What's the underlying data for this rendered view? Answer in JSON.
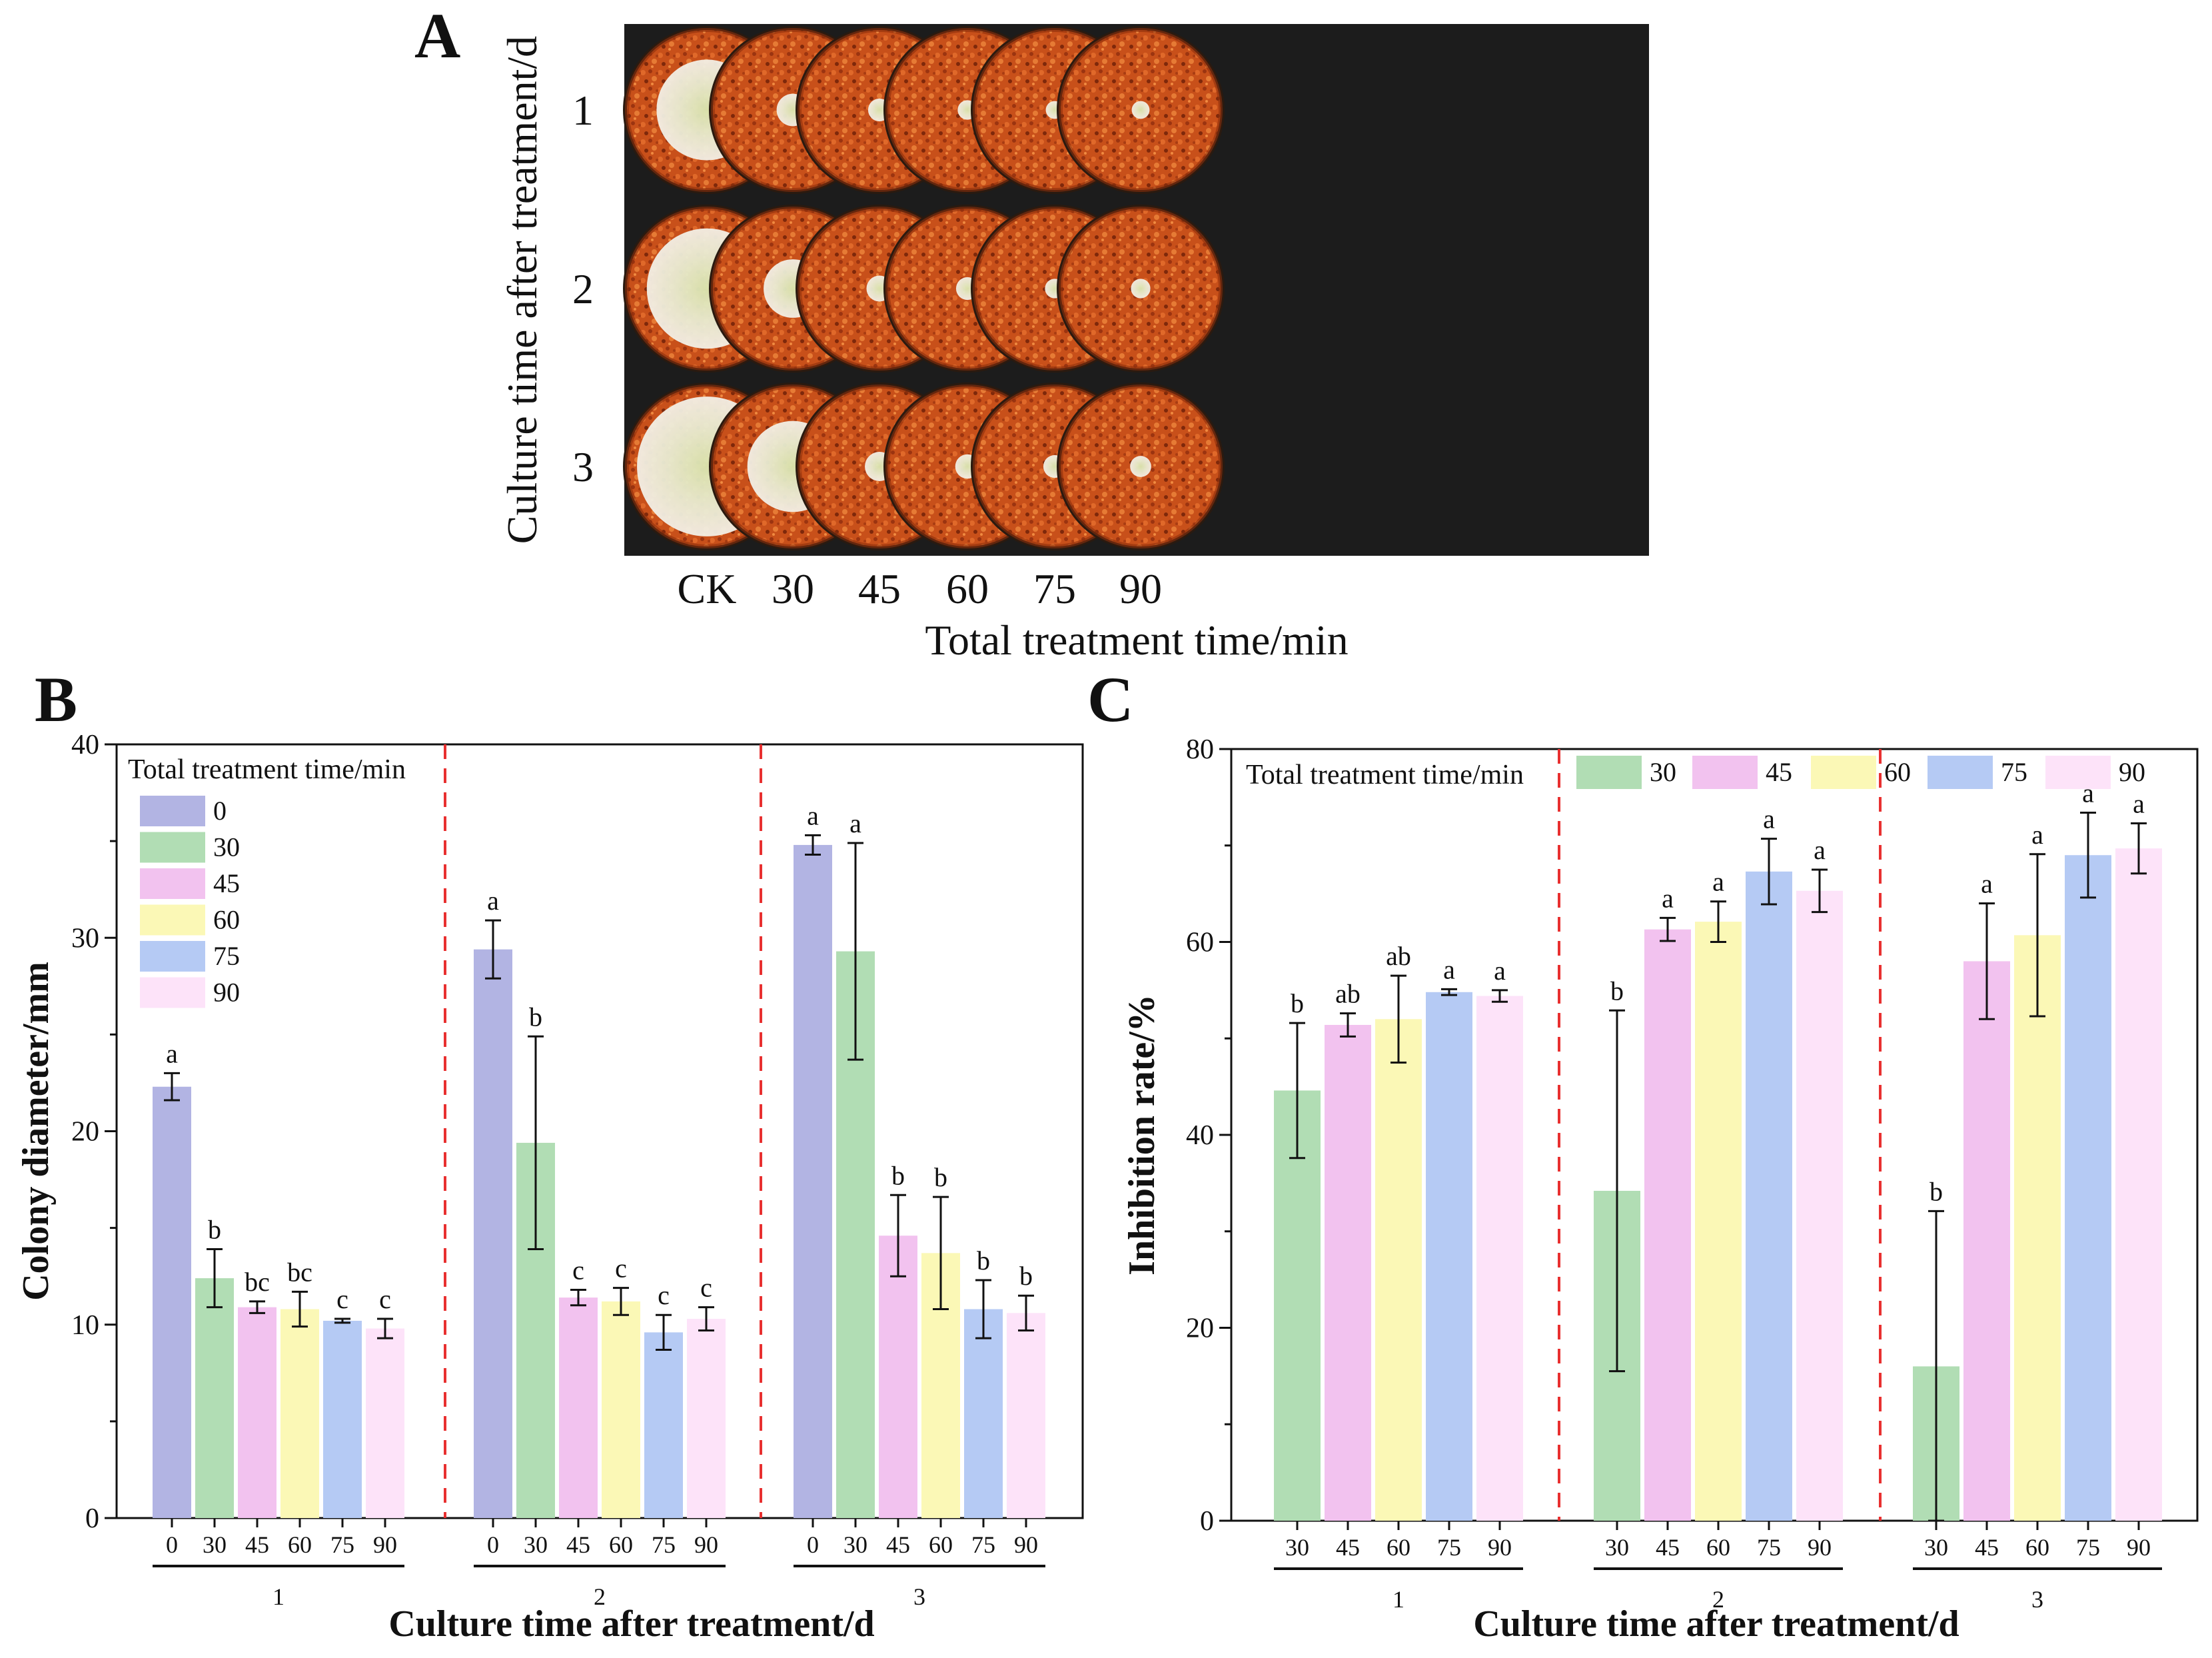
{
  "panel_labels": {
    "a": "A",
    "b": "B",
    "c": "C"
  },
  "colors": {
    "0": "#b2b4e3",
    "30": "#b1ddb4",
    "45": "#f2c2ef",
    "60": "#fbf8b6",
    "75": "#b5caf4",
    "90": "#fde3f9",
    "dish_rim": "#2a1a10",
    "dish_fill": "#c8501a",
    "dish_dark": "#8c2e0c",
    "photo_bg": "#1c1c1c",
    "divider": "#e83030"
  },
  "icons": {
    "dish": "petri-dish-icon"
  },
  "panel_a": {
    "y_title": "Culture time after treatment/d",
    "row_labels": [
      "1",
      "2",
      "3"
    ],
    "col_labels": [
      "CK",
      "30",
      "45",
      "60",
      "75",
      "90"
    ],
    "x_title": "Total treatment time/min",
    "colony_relative_size": [
      [
        0.62,
        0.2,
        0.14,
        0.12,
        0.11,
        0.11
      ],
      [
        0.74,
        0.36,
        0.16,
        0.14,
        0.12,
        0.12
      ],
      [
        0.86,
        0.56,
        0.18,
        0.15,
        0.14,
        0.13
      ]
    ]
  },
  "chart_data": [
    {
      "type": "bar",
      "panel": "B",
      "ylabel": "Colony diameter/mm",
      "xlabel": "Culture time after treatment/d",
      "ylim": [
        0,
        40
      ],
      "yticks": [
        0,
        10,
        20,
        30,
        40
      ],
      "legend_title": "Total treatment time/min",
      "legend": [
        "0",
        "30",
        "45",
        "60",
        "75",
        "90"
      ],
      "groups": [
        {
          "name": "1",
          "bars": [
            {
              "cat": "0",
              "value": 22.3,
              "err": 0.7,
              "sig": "a"
            },
            {
              "cat": "30",
              "value": 12.4,
              "err": 1.5,
              "sig": "b"
            },
            {
              "cat": "45",
              "value": 10.9,
              "err": 0.3,
              "sig": "bc"
            },
            {
              "cat": "60",
              "value": 10.8,
              "err": 0.9,
              "sig": "bc"
            },
            {
              "cat": "75",
              "value": 10.2,
              "err": 0.1,
              "sig": "c"
            },
            {
              "cat": "90",
              "value": 9.8,
              "err": 0.5,
              "sig": "c"
            }
          ]
        },
        {
          "name": "2",
          "bars": [
            {
              "cat": "0",
              "value": 29.4,
              "err": 1.5,
              "sig": "a"
            },
            {
              "cat": "30",
              "value": 19.4,
              "err": 5.5,
              "sig": "b"
            },
            {
              "cat": "45",
              "value": 11.4,
              "err": 0.4,
              "sig": "c"
            },
            {
              "cat": "60",
              "value": 11.2,
              "err": 0.7,
              "sig": "c"
            },
            {
              "cat": "75",
              "value": 9.6,
              "err": 0.9,
              "sig": "c"
            },
            {
              "cat": "90",
              "value": 10.3,
              "err": 0.6,
              "sig": "c"
            }
          ]
        },
        {
          "name": "3",
          "bars": [
            {
              "cat": "0",
              "value": 34.8,
              "err": 0.5,
              "sig": "a"
            },
            {
              "cat": "30",
              "value": 29.3,
              "err": 5.6,
              "sig": "a"
            },
            {
              "cat": "45",
              "value": 14.6,
              "err": 2.1,
              "sig": "b"
            },
            {
              "cat": "60",
              "value": 13.7,
              "err": 2.9,
              "sig": "b"
            },
            {
              "cat": "75",
              "value": 10.8,
              "err": 1.5,
              "sig": "b"
            },
            {
              "cat": "90",
              "value": 10.6,
              "err": 0.9,
              "sig": "b"
            }
          ]
        }
      ]
    },
    {
      "type": "bar",
      "panel": "C",
      "ylabel": "Inhibition rate/%",
      "xlabel": "Culture time after treatment/d",
      "ylim": [
        0,
        80
      ],
      "yticks": [
        0,
        20,
        40,
        60,
        80
      ],
      "legend_title": "Total treatment time/min",
      "legend": [
        "30",
        "45",
        "60",
        "75",
        "90"
      ],
      "groups": [
        {
          "name": "1",
          "bars": [
            {
              "cat": "30",
              "value": 44.6,
              "err": 7.0,
              "sig": "b"
            },
            {
              "cat": "45",
              "value": 51.4,
              "err": 1.2,
              "sig": "ab"
            },
            {
              "cat": "60",
              "value": 52.0,
              "err": 4.5,
              "sig": "ab"
            },
            {
              "cat": "75",
              "value": 54.8,
              "err": 0.3,
              "sig": "a"
            },
            {
              "cat": "90",
              "value": 54.4,
              "err": 0.6,
              "sig": "a"
            }
          ]
        },
        {
          "name": "2",
          "bars": [
            {
              "cat": "30",
              "value": 34.2,
              "err": 18.7,
              "sig": "b"
            },
            {
              "cat": "45",
              "value": 61.3,
              "err": 1.2,
              "sig": "a"
            },
            {
              "cat": "60",
              "value": 62.1,
              "err": 2.1,
              "sig": "a"
            },
            {
              "cat": "75",
              "value": 67.3,
              "err": 3.4,
              "sig": "a"
            },
            {
              "cat": "90",
              "value": 65.3,
              "err": 2.2,
              "sig": "a"
            }
          ]
        },
        {
          "name": "3",
          "bars": [
            {
              "cat": "30",
              "value": 16.0,
              "err": 16.1,
              "sig": "b"
            },
            {
              "cat": "45",
              "value": 58.0,
              "err": 6.0,
              "sig": "a"
            },
            {
              "cat": "60",
              "value": 60.7,
              "err": 8.4,
              "sig": "a"
            },
            {
              "cat": "75",
              "value": 69.0,
              "err": 4.4,
              "sig": "a"
            },
            {
              "cat": "90",
              "value": 69.7,
              "err": 2.6,
              "sig": "a"
            }
          ]
        }
      ]
    }
  ]
}
